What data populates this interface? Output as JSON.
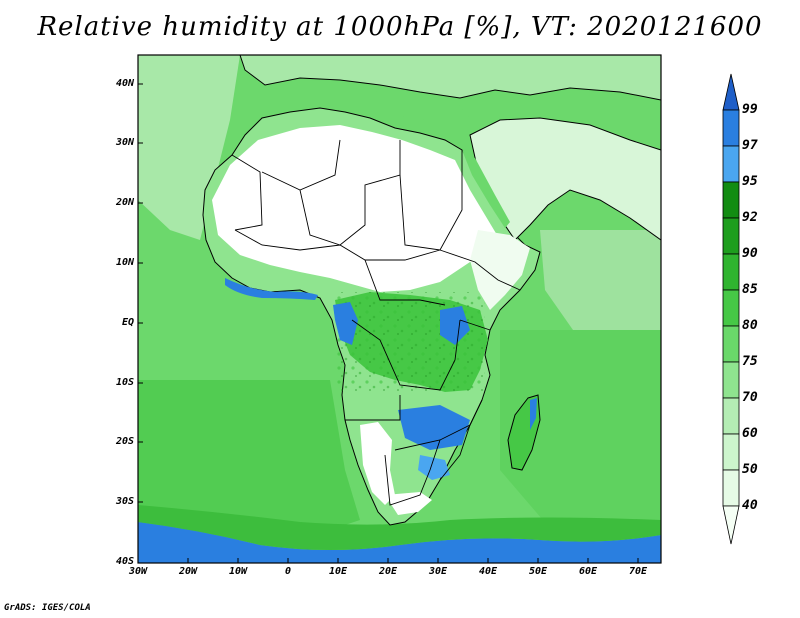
{
  "title": "Relative humidity at 1000hPa [%], VT: 2020121600",
  "credit": "GrADS: IGES/COLA",
  "map": {
    "lat_labels": [
      "40N",
      "30N",
      "20N",
      "10N",
      "EQ",
      "10S",
      "20S",
      "30S",
      "40S"
    ],
    "lon_labels": [
      "30W",
      "20W",
      "10W",
      "0",
      "10E",
      "20E",
      "30E",
      "40E",
      "50E",
      "60E",
      "70E"
    ],
    "extent": {
      "lon_min": -30,
      "lon_max": 77,
      "lat_min": -40,
      "lat_max": 45
    }
  },
  "colorbar": {
    "levels": [
      "99",
      "97",
      "95",
      "92",
      "90",
      "85",
      "80",
      "75",
      "70",
      "60",
      "50",
      "40"
    ],
    "colors": {
      "lt40": "#f5fff5",
      "40_50": "#e6fbe6",
      "50_60": "#cdf5cd",
      "60_70": "#b4edb4",
      "70_75": "#8fe48f",
      "75_80": "#6ad86a",
      "80_85": "#46c846",
      "85_90": "#2fb42f",
      "90_92": "#1e9e1e",
      "92_95": "#128c12",
      "95_97": "#4aa6f0",
      "97_99": "#2a7fe0",
      "gt99": "#1f5fc8"
    }
  }
}
